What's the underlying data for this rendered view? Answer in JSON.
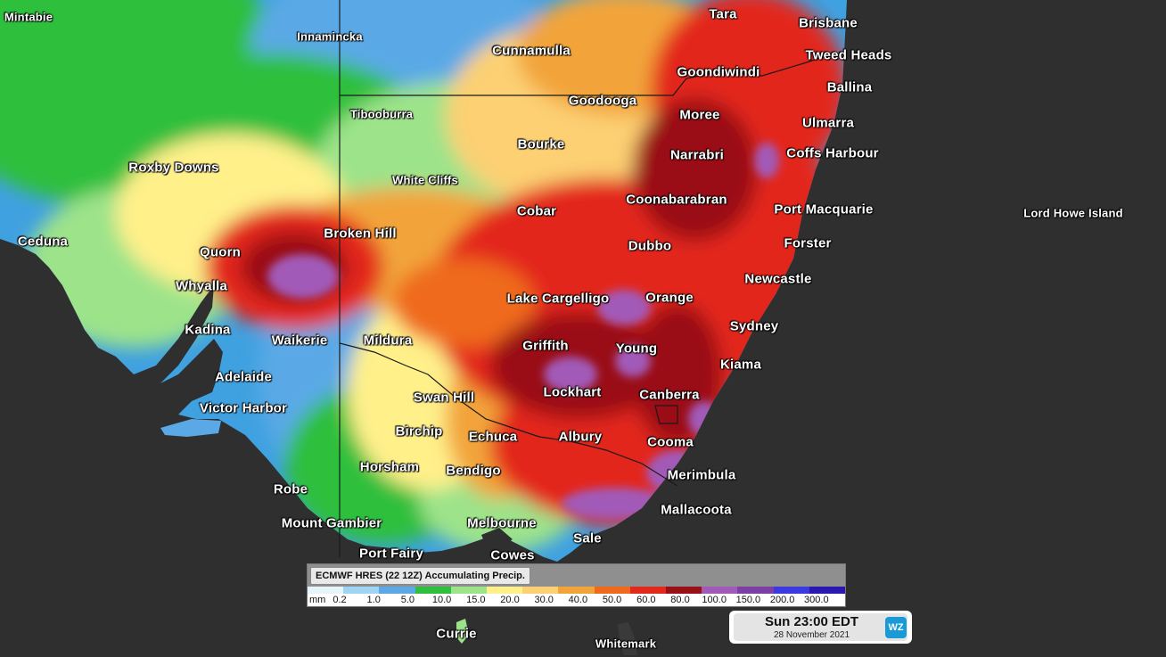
{
  "colors": {
    "ocean": "#2f2f2f",
    "scale": [
      "#e7f4fb",
      "#9fd4f2",
      "#5aa9e6",
      "#2fbf3c",
      "#9de38a",
      "#fff08a",
      "#fcd073",
      "#f2a43a",
      "#ef6a1d",
      "#e3281c",
      "#9a0f18",
      "#a25ab8",
      "#7b3fa5",
      "#3a3ae0",
      "#2a18b0"
    ]
  },
  "places": [
    {
      "name": "Mintabie",
      "size": "small"
    },
    {
      "name": "Innamincka",
      "size": "small"
    },
    {
      "name": "Cunnamulla"
    },
    {
      "name": "Tara"
    },
    {
      "name": "Brisbane"
    },
    {
      "name": "Tweed Heads"
    },
    {
      "name": "Goondiwindi"
    },
    {
      "name": "Ballina"
    },
    {
      "name": "Goodooga"
    },
    {
      "name": "Tibooburra",
      "size": "small"
    },
    {
      "name": "Moree"
    },
    {
      "name": "Ulmarra"
    },
    {
      "name": "Bourke"
    },
    {
      "name": "Narrabri"
    },
    {
      "name": "Coffs Harbour"
    },
    {
      "name": "Roxby Downs"
    },
    {
      "name": "White Cliffs",
      "size": "small"
    },
    {
      "name": "Coonabarabran"
    },
    {
      "name": "Cobar"
    },
    {
      "name": "Port Macquarie"
    },
    {
      "name": "Lord Howe Island",
      "size": "small"
    },
    {
      "name": "Broken Hill"
    },
    {
      "name": "Ceduna"
    },
    {
      "name": "Dubbo"
    },
    {
      "name": "Forster"
    },
    {
      "name": "Quorn"
    },
    {
      "name": "Newcastle"
    },
    {
      "name": "Whyalla"
    },
    {
      "name": "Lake Cargelligo"
    },
    {
      "name": "Orange"
    },
    {
      "name": "Sydney"
    },
    {
      "name": "Kadina"
    },
    {
      "name": "Waikerie"
    },
    {
      "name": "Mildura"
    },
    {
      "name": "Griffith"
    },
    {
      "name": "Young"
    },
    {
      "name": "Kiama"
    },
    {
      "name": "Adelaide"
    },
    {
      "name": "Lockhart"
    },
    {
      "name": "Canberra"
    },
    {
      "name": "Victor Harbor"
    },
    {
      "name": "Swan Hill"
    },
    {
      "name": "Birchip"
    },
    {
      "name": "Echuca"
    },
    {
      "name": "Albury"
    },
    {
      "name": "Cooma"
    },
    {
      "name": "Horsham"
    },
    {
      "name": "Bendigo"
    },
    {
      "name": "Merimbula"
    },
    {
      "name": "Robe"
    },
    {
      "name": "Mallacoota"
    },
    {
      "name": "Mount Gambier"
    },
    {
      "name": "Melbourne"
    },
    {
      "name": "Sale"
    },
    {
      "name": "Port Fairy"
    },
    {
      "name": "Cowes"
    },
    {
      "name": "Currie"
    },
    {
      "name": "Whitemark",
      "size": "small"
    }
  ],
  "legend": {
    "title": "ECMWF HRES (22 12Z) Accumulating Precip.",
    "unit": "mm",
    "ticks": [
      "0.2",
      "1.0",
      "5.0",
      "10.0",
      "15.0",
      "20.0",
      "30.0",
      "40.0",
      "50.0",
      "60.0",
      "80.0",
      "100.0",
      "150.0",
      "200.0",
      "300.0"
    ]
  },
  "timestamp": {
    "time": "Sun 23:00 EDT",
    "date": "28 November 2021",
    "logo": "WZ"
  }
}
